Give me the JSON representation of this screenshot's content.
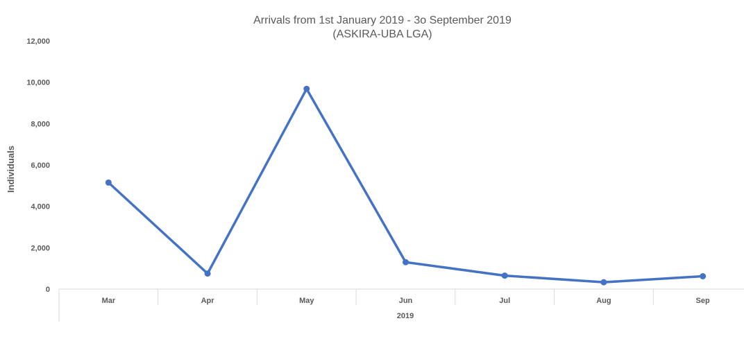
{
  "chart_data": {
    "type": "line",
    "title": "Arrivals from 1st January 2019 - 3o September 2019",
    "subtitle": "(ASKIRA-UBA LGA)",
    "ylabel": "Individuals",
    "xlabel": "2019",
    "categories": [
      "Mar",
      "Apr",
      "May",
      "Jun",
      "Jul",
      "Aug",
      "Sep"
    ],
    "series": [
      {
        "values": [
          5150,
          750,
          9680,
          1300,
          650,
          330,
          620
        ]
      }
    ],
    "ylim": [
      0,
      12000
    ],
    "yticks": [
      0,
      2000,
      4000,
      6000,
      8000,
      10000,
      12000
    ],
    "ytick_labels": [
      "0",
      "2,000",
      "4,000",
      "6,000",
      "8,000",
      "10,000",
      "12,000"
    ],
    "grid": false,
    "line_color": "#4472C4",
    "axis_color": "#D9D9D9"
  }
}
